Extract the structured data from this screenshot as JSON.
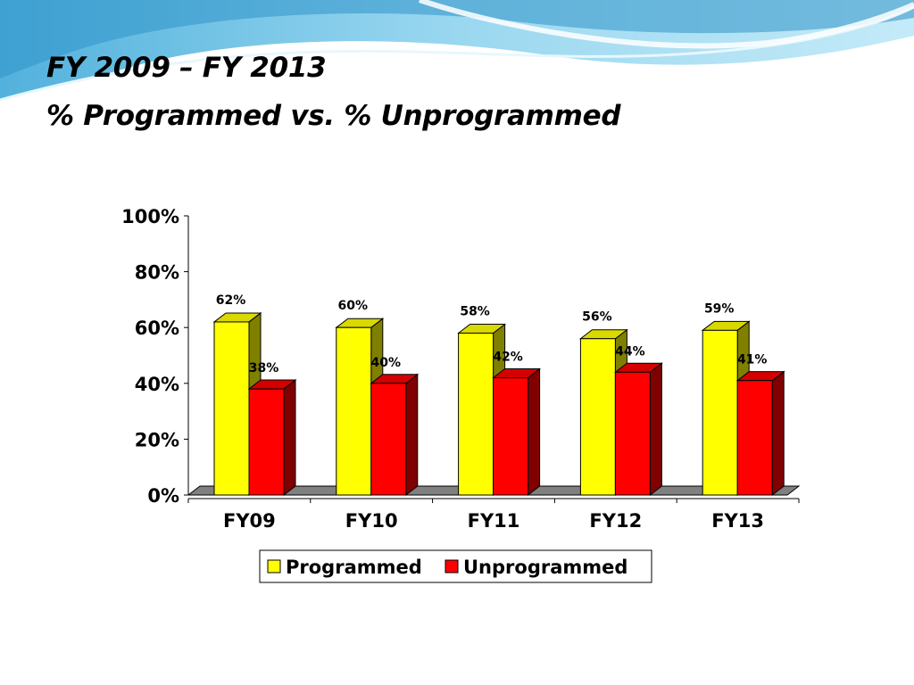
{
  "slide": {
    "title_line1": "FY 2009 – FY 2013",
    "title_line2": "% Programmed vs. % Unprogrammed"
  },
  "chart_data": {
    "type": "bar",
    "style": "3d-clustered-column",
    "categories": [
      "FY09",
      "FY10",
      "FY11",
      "FY12",
      "FY13"
    ],
    "series": [
      {
        "name": "Programmed",
        "values": [
          62,
          60,
          58,
          56,
          59
        ],
        "labels": [
          "62%",
          "60%",
          "58%",
          "56%",
          "59%"
        ],
        "color": "#ffff00"
      },
      {
        "name": "Unprogrammed",
        "values": [
          38,
          40,
          42,
          44,
          41
        ],
        "labels": [
          "38%",
          "40%",
          "42%",
          "44%",
          "41%"
        ],
        "color": "#ff0000"
      }
    ],
    "yaxis": {
      "ticks": [
        "0%",
        "20%",
        "40%",
        "60%",
        "80%",
        "100%"
      ],
      "ylim": [
        0,
        100
      ]
    },
    "grid": false,
    "legend": {
      "position": "bottom"
    }
  }
}
